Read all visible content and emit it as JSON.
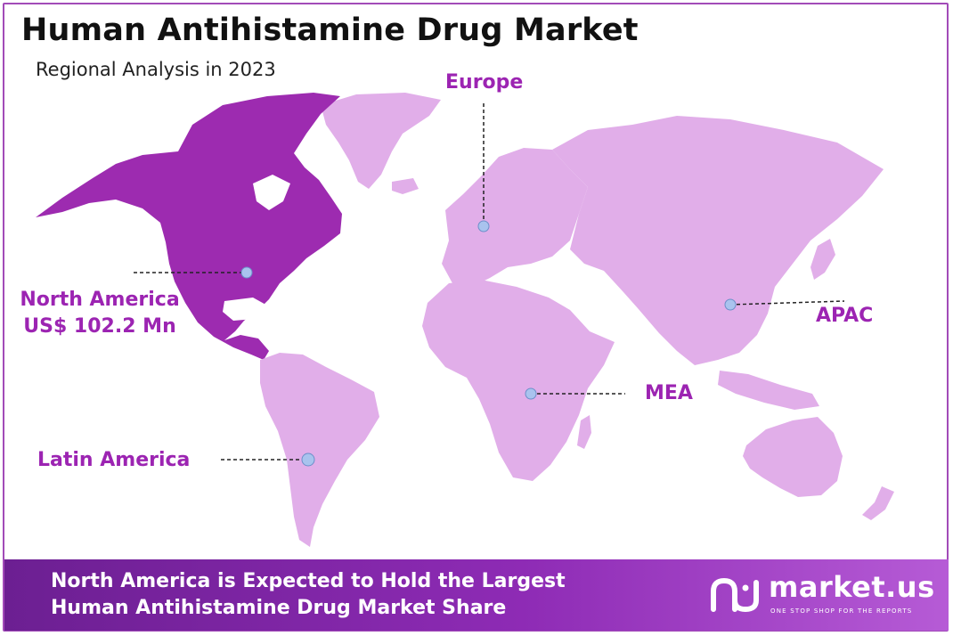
{
  "title": "Human Antihistamine Drug Market",
  "subtitle": "Regional Analysis in 2023",
  "colors": {
    "highlight_region": "#9d2bb0",
    "other_regions": "#e1aee9",
    "label": "#9c24b2",
    "marker": "#a9c3ee",
    "banner_start": "#6c1f92",
    "banner_end": "#b65bd6"
  },
  "regions": {
    "north_america": {
      "name": "North America",
      "value": "US$ 102.2 Mn",
      "highlighted": true
    },
    "europe": {
      "name": "Europe"
    },
    "apac": {
      "name": "APAC"
    },
    "mea": {
      "name": "MEA"
    },
    "latin_america": {
      "name": "Latin America"
    }
  },
  "banner": {
    "line1": "North America  is Expected to Hold the Largest",
    "line2": "Human Antihistamine Drug Market Share"
  },
  "logo": {
    "name": "market.us",
    "tagline": "ONE STOP SHOP FOR THE REPORTS"
  }
}
